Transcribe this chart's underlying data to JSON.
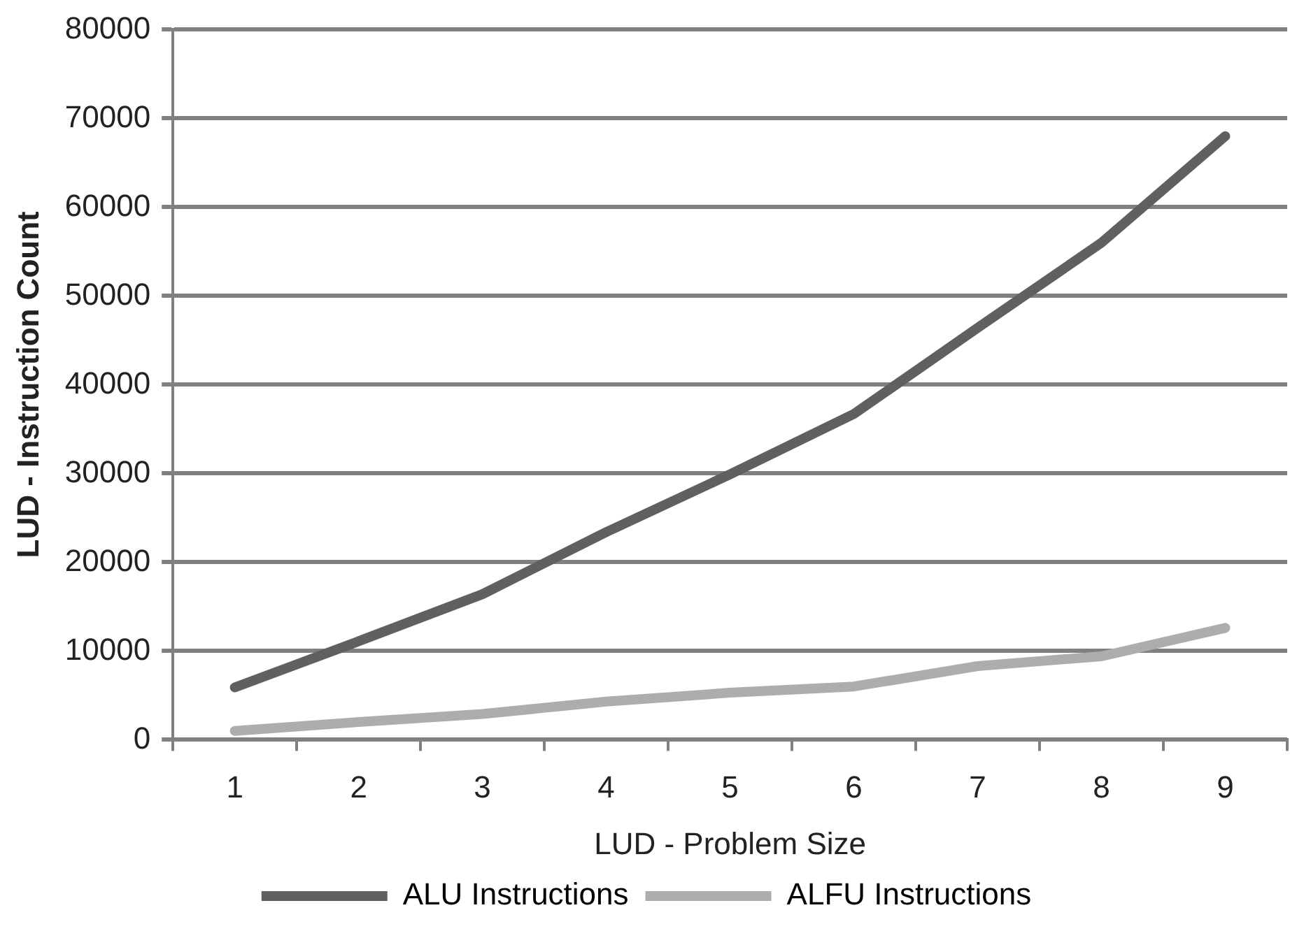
{
  "chart_data": {
    "type": "line",
    "xlabel": "LUD - Problem Size",
    "ylabel": "LUD - Instruction Count",
    "categories": [
      "1",
      "2",
      "3",
      "4",
      "5",
      "6",
      "7",
      "8",
      "9"
    ],
    "series": [
      {
        "name": "ALU Instructions",
        "color": "#606060",
        "values": [
          5900,
          11100,
          16400,
          23400,
          29900,
          36700,
          46400,
          56000,
          68000
        ]
      },
      {
        "name": "ALFU Instructions",
        "color": "#adadad",
        "values": [
          1000,
          2000,
          2900,
          4300,
          5300,
          6000,
          8300,
          9400,
          12600
        ]
      }
    ],
    "ylim": [
      0,
      80000
    ],
    "yticks": [
      0,
      10000,
      20000,
      30000,
      40000,
      50000,
      60000,
      70000,
      80000
    ],
    "grid": "y",
    "legend": "bottom",
    "marker": "none",
    "line_style": "solid"
  }
}
